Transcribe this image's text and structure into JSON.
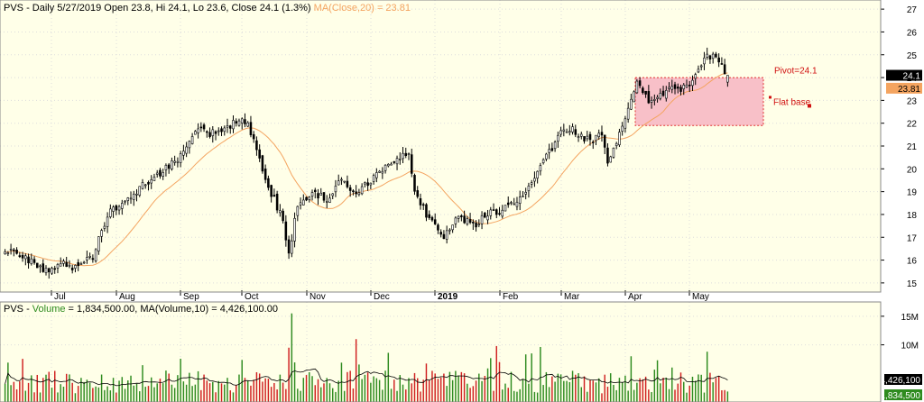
{
  "price_header": {
    "prefix": "PVS - Daily 5/27/2019 Open 23.8, Hi 24.1, Lo 23.6, Close 24.1 (1.3%)",
    "ma_text": "MA(Close,20) = 23.81"
  },
  "volume_header": {
    "prefix": "PVS - ",
    "volume_label": "Volume",
    "rest": " = 1,834,500.00, MA(Volume,10) = 4,426,100.00"
  },
  "colors": {
    "up_candle_fill": "#ffffff",
    "down_candle_fill": "#000000",
    "candle_outline": "#000000",
    "ma_line": "#f4a460",
    "volume_up": "#2e8b1f",
    "volume_down": "#d02020",
    "volume_ma": "#000000",
    "base_fill": "#f8c0c8",
    "base_border": "#e03030",
    "annotation_text": "#d01010",
    "background": "#ffffe8",
    "grid": "#dddddd",
    "price_tag_bg": "#000000",
    "ma_tag_bg": "#f4a460"
  },
  "chart_data": [
    {
      "type": "candlestick",
      "ylim": [
        14.6,
        27.4
      ],
      "yticks": [
        15,
        16,
        17,
        18,
        19,
        20,
        21,
        22,
        23,
        24,
        25,
        26,
        27
      ],
      "x_months": [
        "Jul",
        "Aug",
        "Sep",
        "Oct",
        "Nov",
        "Dec",
        "2019",
        "Feb",
        "Mar",
        "Apr",
        "May"
      ],
      "last_close_label": "24.1",
      "ma_label": "23.81",
      "base_zone": {
        "low": 21.9,
        "high": 24.0
      },
      "annotations": [
        {
          "text": "Pivot=24.1",
          "price": 24.1
        },
        {
          "text": "Flat base",
          "price": 22.8
        }
      ],
      "control_points": [
        [
          0,
          16.5
        ],
        [
          5,
          16.3
        ],
        [
          10,
          15.8
        ],
        [
          15,
          15.4
        ],
        [
          20,
          15.8
        ],
        [
          25,
          15.6
        ],
        [
          30,
          16.2
        ],
        [
          35,
          18.0
        ],
        [
          40,
          18.5
        ],
        [
          45,
          19.0
        ],
        [
          50,
          19.6
        ],
        [
          55,
          20.0
        ],
        [
          60,
          20.5
        ],
        [
          65,
          21.8
        ],
        [
          70,
          21.5
        ],
        [
          75,
          21.8
        ],
        [
          80,
          22.1
        ],
        [
          83,
          22.0
        ],
        [
          86,
          20.8
        ],
        [
          90,
          19.2
        ],
        [
          95,
          17.8
        ],
        [
          97,
          16.2
        ],
        [
          100,
          18.5
        ],
        [
          105,
          19.0
        ],
        [
          110,
          18.7
        ],
        [
          115,
          19.5
        ],
        [
          120,
          19.0
        ],
        [
          125,
          19.5
        ],
        [
          130,
          20.0
        ],
        [
          135,
          20.5
        ],
        [
          138,
          20.6
        ],
        [
          140,
          19.0
        ],
        [
          145,
          17.8
        ],
        [
          150,
          17.0
        ],
        [
          155,
          18.0
        ],
        [
          160,
          17.5
        ],
        [
          165,
          18.0
        ],
        [
          170,
          18.2
        ],
        [
          175,
          18.5
        ],
        [
          180,
          19.5
        ],
        [
          185,
          20.5
        ],
        [
          190,
          21.5
        ],
        [
          193,
          21.8
        ],
        [
          196,
          21.5
        ],
        [
          200,
          21.2
        ],
        [
          204,
          21.5
        ],
        [
          206,
          20.2
        ],
        [
          210,
          21.5
        ],
        [
          213,
          22.5
        ],
        [
          216,
          23.8
        ],
        [
          220,
          23.0
        ],
        [
          224,
          23.2
        ],
        [
          228,
          23.6
        ],
        [
          232,
          23.5
        ],
        [
          236,
          24.0
        ],
        [
          240,
          25.0
        ],
        [
          243,
          24.8
        ],
        [
          245,
          24.5
        ],
        [
          247,
          24.1
        ]
      ]
    },
    {
      "type": "bar",
      "ylim": [
        0,
        17500000
      ],
      "yticks": [
        {
          "value": 10000000,
          "label": "10M"
        },
        {
          "value": 15000000,
          "label": "15M"
        }
      ],
      "ma_label": "4,426,100",
      "last_volume_label": "1,834,500"
    }
  ]
}
